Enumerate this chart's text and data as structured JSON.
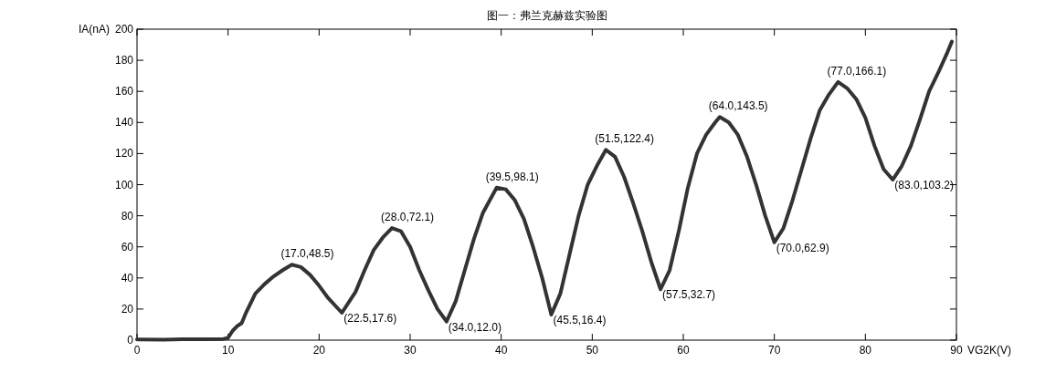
{
  "chart_data": {
    "type": "line",
    "title": "图一：弗兰克赫兹实验图",
    "xlabel": "VG2K(V)",
    "ylabel": "IA(nA)",
    "x": [
      0,
      3,
      5,
      8,
      9.5,
      10,
      10.5,
      11,
      11.5,
      12,
      13,
      14,
      15,
      16,
      17,
      18,
      19,
      20,
      21,
      22.5,
      24,
      25,
      26,
      27,
      28,
      29,
      30,
      31,
      32,
      33,
      34,
      35,
      36,
      37,
      38,
      39.5,
      40.5,
      41.5,
      42.5,
      43.5,
      44.5,
      45.5,
      46.5,
      47.5,
      48.5,
      49.5,
      50.5,
      51.5,
      52.5,
      53.5,
      54.5,
      55.5,
      56.5,
      57.5,
      58.5,
      59.5,
      60.5,
      61.5,
      62.5,
      63.5,
      64,
      65,
      66,
      67,
      68,
      69,
      70,
      71,
      72,
      73,
      74,
      75,
      76,
      77,
      78,
      79,
      80,
      81,
      82,
      83,
      84,
      85,
      86,
      87,
      88,
      89,
      89.5
    ],
    "series": [
      {
        "color": "#333333",
        "values": [
          0.5,
          0.3,
          0.6,
          0.6,
          0.8,
          1.5,
          6,
          9,
          11,
          18,
          30,
          36,
          41,
          45,
          48.5,
          47,
          42,
          35,
          27,
          17.6,
          31,
          45,
          58,
          66,
          72.1,
          70,
          60,
          45,
          32,
          20,
          12,
          25,
          45,
          65,
          82,
          98.1,
          97,
          90,
          78,
          60,
          40,
          16.4,
          30,
          55,
          80,
          100,
          112,
          122.4,
          118,
          105,
          88,
          70,
          50,
          32.7,
          45,
          70,
          98,
          120,
          132,
          140,
          143.5,
          140,
          132,
          118,
          100,
          80,
          62.9,
          72,
          90,
          110,
          130,
          148,
          158,
          166.1,
          162,
          155,
          143,
          125,
          110,
          103.2,
          112,
          125,
          142,
          160,
          172,
          185,
          192
        ]
      }
    ],
    "xlim": [
      0,
      90
    ],
    "ylim": [
      0,
      200
    ],
    "xticks": [
      0,
      10,
      20,
      30,
      40,
      50,
      60,
      70,
      80,
      90
    ],
    "yticks": [
      0,
      20,
      40,
      60,
      80,
      100,
      120,
      140,
      160,
      180,
      200
    ],
    "grid": false,
    "line_style": "solid",
    "annotations": [
      {
        "text": "(17.0,48.5)",
        "x": 17.0,
        "y": 48.5
      },
      {
        "text": "(22.5,17.6)",
        "x": 22.5,
        "y": 17.6
      },
      {
        "text": "(28.0,72.1)",
        "x": 28.0,
        "y": 72.1
      },
      {
        "text": "(34.0,12.0)",
        "x": 34.0,
        "y": 12.0
      },
      {
        "text": "(39.5,98.1)",
        "x": 39.5,
        "y": 98.1
      },
      {
        "text": "(45.5,16.4)",
        "x": 45.5,
        "y": 16.4
      },
      {
        "text": "(51.5,122.4)",
        "x": 51.5,
        "y": 122.4
      },
      {
        "text": "(57.5,32.7)",
        "x": 57.5,
        "y": 32.7
      },
      {
        "text": "(64.0,143.5)",
        "x": 64.0,
        "y": 143.5
      },
      {
        "text": "(70.0,62.9)",
        "x": 70.0,
        "y": 62.9
      },
      {
        "text": "(77.0,166.1)",
        "x": 77.0,
        "y": 166.1
      },
      {
        "text": "(83.0,103.2)",
        "x": 83.0,
        "y": 103.2
      }
    ]
  }
}
